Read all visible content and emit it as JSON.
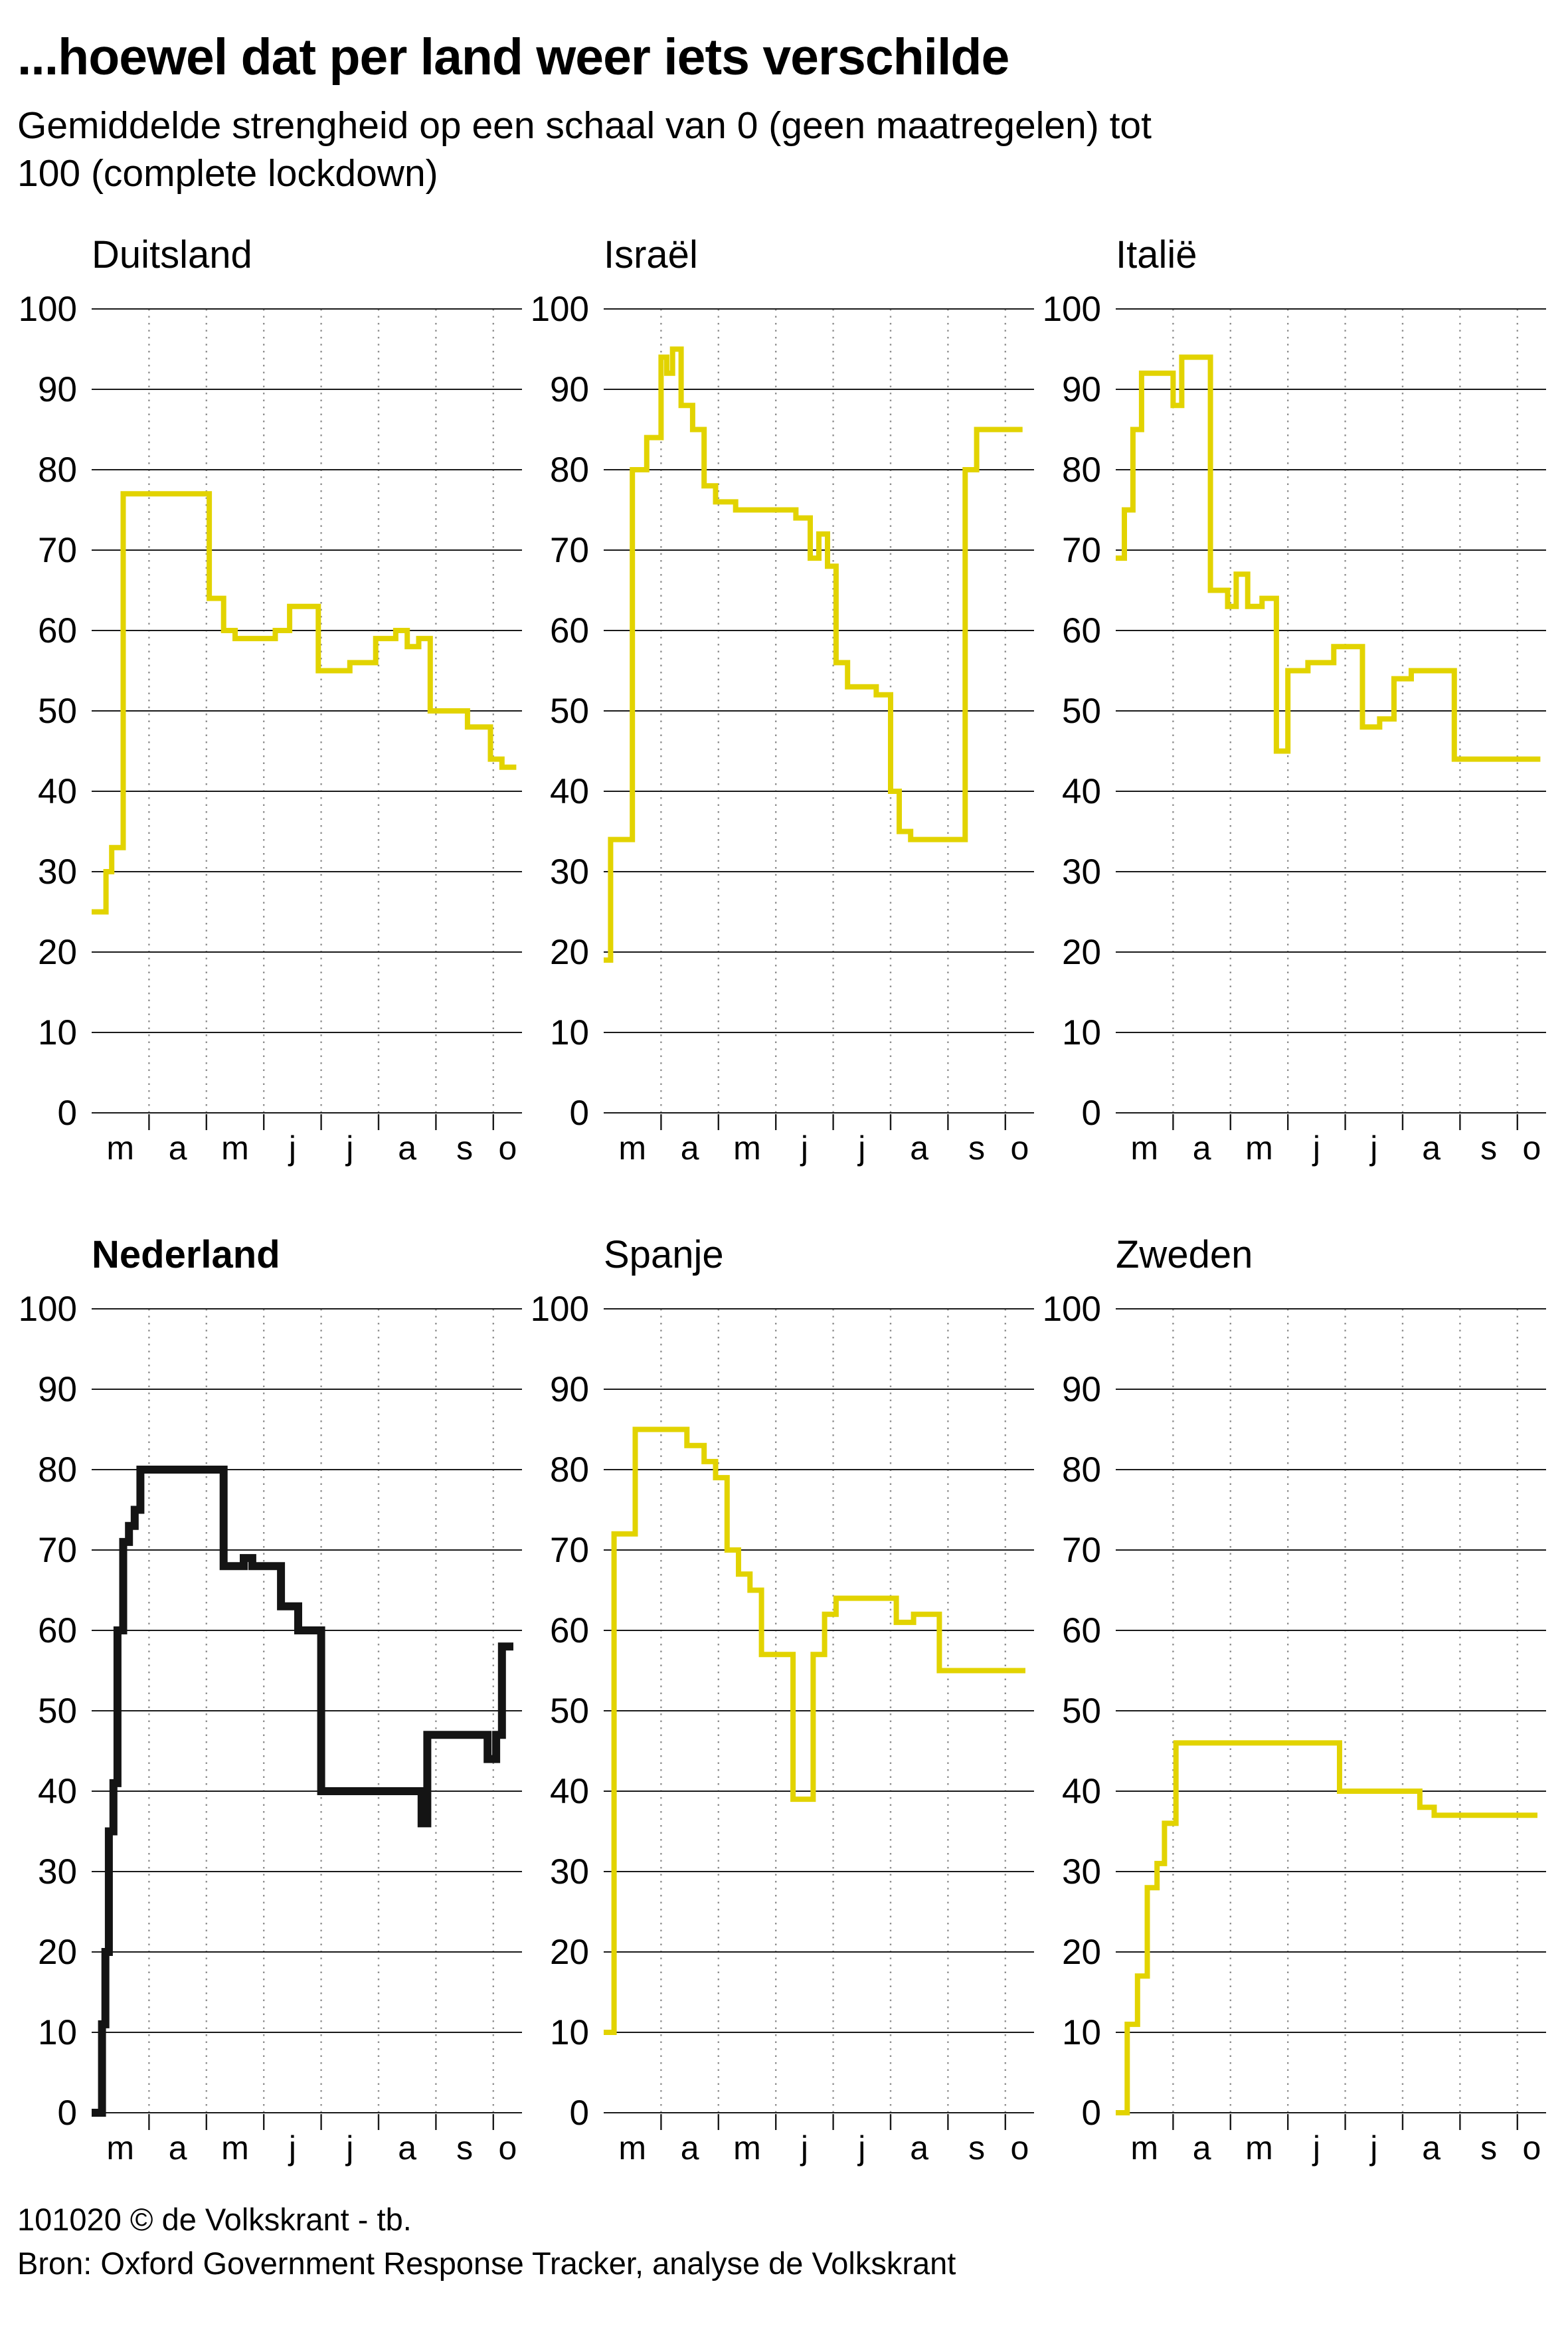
{
  "header": {
    "title": "...hoewel dat per land weer iets verschilde",
    "subtitle": "Gemiddelde strengheid op een schaal van 0 (geen maatregelen) tot 100 (complete lockdown)"
  },
  "footer": {
    "credit": "101020 © de Volkskrant - tb.",
    "source": "Bron: Oxford Government Response Tracker, analyse de Volkskrant"
  },
  "colors": {
    "line_default": "#e2d300",
    "line_highlight": "#141414",
    "grid": "#1a1a1a",
    "dotted_grid": "#8f8f8f",
    "text": "#000000",
    "background": "#ffffff"
  },
  "axis": {
    "y_ticks": [
      100,
      90,
      80,
      70,
      60,
      50,
      40,
      30,
      20,
      10,
      0
    ],
    "y_min": 0,
    "y_max": 100,
    "x_min": 0,
    "x_max": 7.5,
    "x_labels": [
      "m",
      "a",
      "m",
      "j",
      "j",
      "a",
      "s",
      "o"
    ],
    "x_unit": "maand (maart t/m oktober 2020)"
  },
  "chart_data": [
    {
      "type": "line",
      "title": "Duitsland",
      "highlight": false,
      "color": "#e2d300",
      "points": [
        [
          0.0,
          25
        ],
        [
          0.25,
          25
        ],
        [
          0.25,
          30
        ],
        [
          0.35,
          30
        ],
        [
          0.35,
          33
        ],
        [
          0.55,
          33
        ],
        [
          0.55,
          77
        ],
        [
          2.05,
          77
        ],
        [
          2.05,
          64
        ],
        [
          2.3,
          64
        ],
        [
          2.3,
          60
        ],
        [
          2.5,
          60
        ],
        [
          2.5,
          59
        ],
        [
          3.2,
          59
        ],
        [
          3.2,
          60
        ],
        [
          3.45,
          60
        ],
        [
          3.45,
          63
        ],
        [
          3.95,
          63
        ],
        [
          3.95,
          55
        ],
        [
          4.5,
          55
        ],
        [
          4.5,
          56
        ],
        [
          4.95,
          56
        ],
        [
          4.95,
          59
        ],
        [
          5.3,
          59
        ],
        [
          5.3,
          60
        ],
        [
          5.5,
          60
        ],
        [
          5.5,
          58
        ],
        [
          5.7,
          58
        ],
        [
          5.7,
          59
        ],
        [
          5.9,
          59
        ],
        [
          5.9,
          50
        ],
        [
          6.55,
          50
        ],
        [
          6.55,
          48
        ],
        [
          6.95,
          48
        ],
        [
          6.95,
          44
        ],
        [
          7.15,
          44
        ],
        [
          7.15,
          43
        ],
        [
          7.4,
          43
        ]
      ]
    },
    {
      "type": "line",
      "title": "Israël",
      "highlight": false,
      "color": "#e2d300",
      "points": [
        [
          0.0,
          19
        ],
        [
          0.12,
          19
        ],
        [
          0.12,
          34
        ],
        [
          0.5,
          34
        ],
        [
          0.5,
          80
        ],
        [
          0.75,
          80
        ],
        [
          0.75,
          84
        ],
        [
          1.0,
          84
        ],
        [
          1.0,
          94
        ],
        [
          1.1,
          94
        ],
        [
          1.1,
          92
        ],
        [
          1.2,
          92
        ],
        [
          1.2,
          95
        ],
        [
          1.35,
          95
        ],
        [
          1.35,
          88
        ],
        [
          1.55,
          88
        ],
        [
          1.55,
          85
        ],
        [
          1.75,
          85
        ],
        [
          1.75,
          78
        ],
        [
          1.95,
          78
        ],
        [
          1.95,
          76
        ],
        [
          2.3,
          76
        ],
        [
          2.3,
          75
        ],
        [
          3.35,
          75
        ],
        [
          3.35,
          74
        ],
        [
          3.6,
          74
        ],
        [
          3.6,
          69
        ],
        [
          3.75,
          69
        ],
        [
          3.75,
          72
        ],
        [
          3.9,
          72
        ],
        [
          3.9,
          68
        ],
        [
          4.05,
          68
        ],
        [
          4.05,
          56
        ],
        [
          4.25,
          56
        ],
        [
          4.25,
          53
        ],
        [
          4.75,
          53
        ],
        [
          4.75,
          52
        ],
        [
          5.0,
          52
        ],
        [
          5.0,
          40
        ],
        [
          5.15,
          40
        ],
        [
          5.15,
          35
        ],
        [
          5.35,
          35
        ],
        [
          5.35,
          34
        ],
        [
          6.3,
          34
        ],
        [
          6.3,
          80
        ],
        [
          6.5,
          80
        ],
        [
          6.5,
          85
        ],
        [
          7.3,
          85
        ]
      ]
    },
    {
      "type": "line",
      "title": "Italië",
      "highlight": false,
      "color": "#e2d300",
      "points": [
        [
          0.0,
          69
        ],
        [
          0.15,
          69
        ],
        [
          0.15,
          75
        ],
        [
          0.3,
          75
        ],
        [
          0.3,
          85
        ],
        [
          0.45,
          85
        ],
        [
          0.45,
          92
        ],
        [
          1.0,
          92
        ],
        [
          1.0,
          88
        ],
        [
          1.15,
          88
        ],
        [
          1.15,
          94
        ],
        [
          1.65,
          94
        ],
        [
          1.65,
          65
        ],
        [
          1.95,
          65
        ],
        [
          1.95,
          63
        ],
        [
          2.1,
          63
        ],
        [
          2.1,
          67
        ],
        [
          2.3,
          67
        ],
        [
          2.3,
          63
        ],
        [
          2.55,
          63
        ],
        [
          2.55,
          64
        ],
        [
          2.8,
          64
        ],
        [
          2.8,
          45
        ],
        [
          3.0,
          45
        ],
        [
          3.0,
          55
        ],
        [
          3.35,
          55
        ],
        [
          3.35,
          56
        ],
        [
          3.8,
          56
        ],
        [
          3.8,
          58
        ],
        [
          4.3,
          58
        ],
        [
          4.3,
          48
        ],
        [
          4.6,
          48
        ],
        [
          4.6,
          49
        ],
        [
          4.85,
          49
        ],
        [
          4.85,
          54
        ],
        [
          5.15,
          54
        ],
        [
          5.15,
          55
        ],
        [
          5.9,
          55
        ],
        [
          5.9,
          44
        ],
        [
          7.4,
          44
        ]
      ]
    },
    {
      "type": "line",
      "title": "Nederland",
      "highlight": true,
      "color": "#141414",
      "points": [
        [
          0.0,
          0
        ],
        [
          0.18,
          0
        ],
        [
          0.18,
          11
        ],
        [
          0.24,
          11
        ],
        [
          0.24,
          20
        ],
        [
          0.3,
          20
        ],
        [
          0.3,
          35
        ],
        [
          0.38,
          35
        ],
        [
          0.38,
          41
        ],
        [
          0.45,
          41
        ],
        [
          0.45,
          60
        ],
        [
          0.55,
          60
        ],
        [
          0.55,
          71
        ],
        [
          0.65,
          71
        ],
        [
          0.65,
          73
        ],
        [
          0.75,
          73
        ],
        [
          0.75,
          75
        ],
        [
          0.85,
          75
        ],
        [
          0.85,
          80
        ],
        [
          2.3,
          80
        ],
        [
          2.3,
          68
        ],
        [
          2.65,
          68
        ],
        [
          2.65,
          69
        ],
        [
          2.8,
          69
        ],
        [
          2.8,
          68
        ],
        [
          3.3,
          68
        ],
        [
          3.3,
          63
        ],
        [
          3.6,
          63
        ],
        [
          3.6,
          60
        ],
        [
          4.0,
          60
        ],
        [
          4.0,
          40
        ],
        [
          5.75,
          40
        ],
        [
          5.75,
          36
        ],
        [
          5.85,
          36
        ],
        [
          5.85,
          47
        ],
        [
          6.9,
          47
        ],
        [
          6.9,
          44
        ],
        [
          7.05,
          44
        ],
        [
          7.05,
          47
        ],
        [
          7.15,
          47
        ],
        [
          7.15,
          58
        ],
        [
          7.35,
          58
        ]
      ]
    },
    {
      "type": "line",
      "title": "Spanje",
      "highlight": false,
      "color": "#e2d300",
      "points": [
        [
          0.0,
          10
        ],
        [
          0.18,
          10
        ],
        [
          0.18,
          72
        ],
        [
          0.55,
          72
        ],
        [
          0.55,
          85
        ],
        [
          1.45,
          85
        ],
        [
          1.45,
          83
        ],
        [
          1.75,
          83
        ],
        [
          1.75,
          81
        ],
        [
          1.95,
          81
        ],
        [
          1.95,
          79
        ],
        [
          2.15,
          79
        ],
        [
          2.15,
          70
        ],
        [
          2.35,
          70
        ],
        [
          2.35,
          67
        ],
        [
          2.55,
          67
        ],
        [
          2.55,
          65
        ],
        [
          2.75,
          65
        ],
        [
          2.75,
          57
        ],
        [
          3.3,
          57
        ],
        [
          3.3,
          39
        ],
        [
          3.65,
          39
        ],
        [
          3.65,
          57
        ],
        [
          3.85,
          57
        ],
        [
          3.85,
          62
        ],
        [
          4.05,
          62
        ],
        [
          4.05,
          64
        ],
        [
          5.1,
          64
        ],
        [
          5.1,
          61
        ],
        [
          5.4,
          61
        ],
        [
          5.4,
          62
        ],
        [
          5.85,
          62
        ],
        [
          5.85,
          55
        ],
        [
          7.35,
          55
        ]
      ]
    },
    {
      "type": "line",
      "title": "Zweden",
      "highlight": false,
      "color": "#e2d300",
      "points": [
        [
          0.0,
          0
        ],
        [
          0.2,
          0
        ],
        [
          0.2,
          11
        ],
        [
          0.38,
          11
        ],
        [
          0.38,
          17
        ],
        [
          0.55,
          17
        ],
        [
          0.55,
          28
        ],
        [
          0.72,
          28
        ],
        [
          0.72,
          31
        ],
        [
          0.85,
          31
        ],
        [
          0.85,
          36
        ],
        [
          1.05,
          36
        ],
        [
          1.05,
          46
        ],
        [
          3.9,
          46
        ],
        [
          3.9,
          40
        ],
        [
          5.3,
          40
        ],
        [
          5.3,
          38
        ],
        [
          5.55,
          38
        ],
        [
          5.55,
          37
        ],
        [
          7.35,
          37
        ]
      ]
    }
  ]
}
